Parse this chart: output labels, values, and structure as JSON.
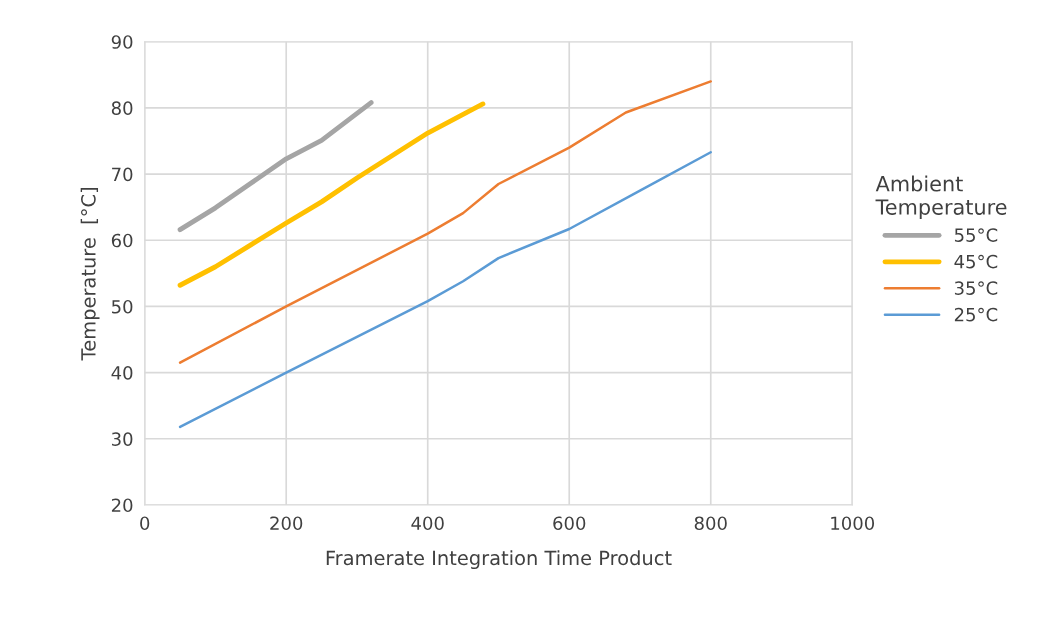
{
  "chart_data": {
    "type": "line",
    "xlabel": "Framerate Integration Time Product",
    "ylabel": "Temperature  [°C]",
    "legend_title": "Ambient\nTemperature",
    "legend": "right",
    "xlim": [
      0,
      1000
    ],
    "xticks": [
      0,
      200,
      400,
      600,
      800,
      1000
    ],
    "ylim": [
      20,
      90
    ],
    "yticks": [
      20,
      30,
      40,
      50,
      60,
      70,
      80,
      90
    ],
    "grid": true,
    "marker": "none",
    "line_style": "solid",
    "series": [
      {
        "name": "55°C",
        "color": "#a5a5a5",
        "x": [
          50,
          100,
          150,
          200,
          250,
          320
        ],
        "values": [
          61.6,
          64.9,
          68.6,
          72.3,
          75.1,
          80.8
        ]
      },
      {
        "name": "45°C",
        "color": "#ffc000",
        "x": [
          50,
          100,
          150,
          200,
          250,
          300,
          350,
          400,
          478
        ],
        "values": [
          53.2,
          56,
          59.3,
          62.6,
          65.8,
          69.4,
          72.8,
          76.2,
          80.6
        ]
      },
      {
        "name": "35°C",
        "color": "#ed7d31",
        "x": [
          50,
          200,
          400,
          450,
          500,
          600,
          680,
          800
        ],
        "values": [
          41.5,
          50,
          61,
          64.1,
          68.5,
          74,
          79.3,
          84
        ]
      },
      {
        "name": "25°C",
        "color": "#5b9bd5",
        "x": [
          50,
          200,
          400,
          450,
          500,
          600,
          700,
          800
        ],
        "values": [
          31.8,
          40,
          50.8,
          53.8,
          57.3,
          61.7,
          67.5,
          73.3
        ]
      }
    ]
  }
}
